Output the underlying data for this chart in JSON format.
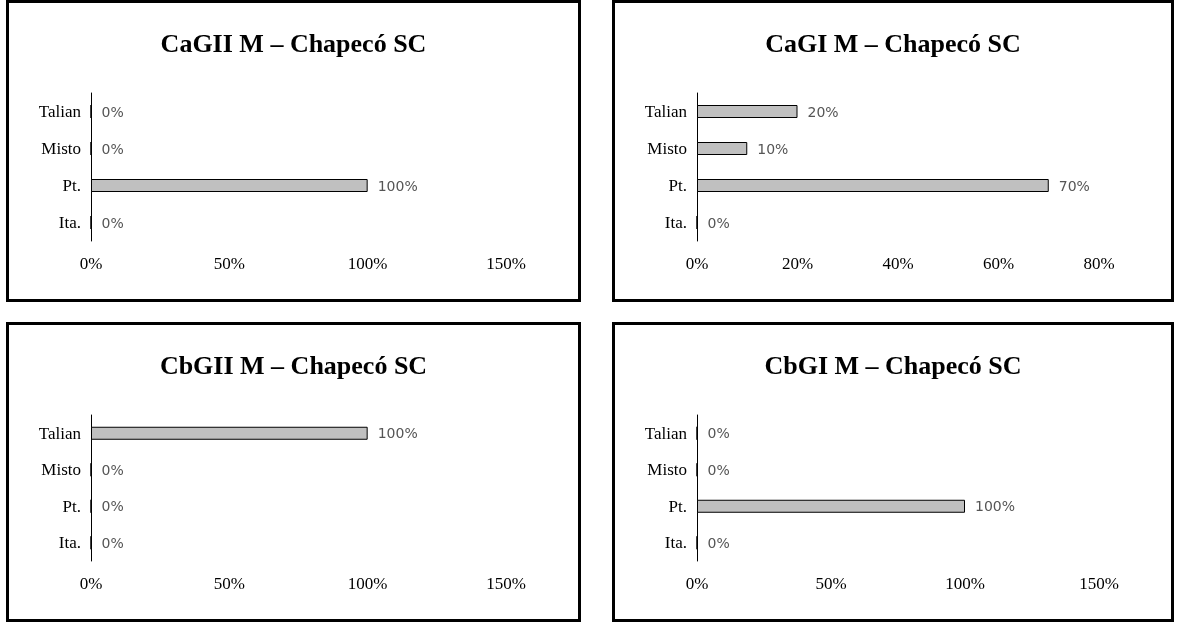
{
  "chart_data": [
    {
      "type": "bar",
      "orientation": "horizontal",
      "title": "CaGII M – Chapecó SC",
      "categories": [
        "Talian",
        "Misto",
        "Pt.",
        "Ita."
      ],
      "values": [
        0,
        0,
        100,
        0
      ],
      "value_labels": [
        "0%",
        "0%",
        "100%",
        "0%"
      ],
      "color": "#c0c0c0",
      "xlim": [
        0,
        150
      ],
      "xticks": [
        {
          "value": 0,
          "label": "0%"
        },
        {
          "value": 50,
          "label": "50%"
        },
        {
          "value": 100,
          "label": "100%"
        },
        {
          "value": 150,
          "label": "150%"
        }
      ]
    },
    {
      "type": "bar",
      "orientation": "horizontal",
      "title": "CaGI M – Chapecó SC",
      "categories": [
        "Talian",
        "Misto",
        "Pt.",
        "Ita."
      ],
      "values": [
        20,
        10,
        70,
        0
      ],
      "value_labels": [
        "20%",
        "10%",
        "70%",
        "0%"
      ],
      "color": "#c0c0c0",
      "xlim": [
        0,
        80
      ],
      "xticks": [
        {
          "value": 0,
          "label": "0%"
        },
        {
          "value": 20,
          "label": "20%"
        },
        {
          "value": 40,
          "label": "40%"
        },
        {
          "value": 60,
          "label": "60%"
        },
        {
          "value": 80,
          "label": "80%"
        }
      ]
    },
    {
      "type": "bar",
      "orientation": "horizontal",
      "title": "CbGII M – Chapecó SC",
      "categories": [
        "Talian",
        "Misto",
        "Pt.",
        "Ita."
      ],
      "values": [
        100,
        0,
        0,
        0
      ],
      "value_labels": [
        "100%",
        "0%",
        "0%",
        "0%"
      ],
      "color": "#c0c0c0",
      "xlim": [
        0,
        150
      ],
      "xticks": [
        {
          "value": 0,
          "label": "0%"
        },
        {
          "value": 50,
          "label": "50%"
        },
        {
          "value": 100,
          "label": "100%"
        },
        {
          "value": 150,
          "label": "150%"
        }
      ]
    },
    {
      "type": "bar",
      "orientation": "horizontal",
      "title": "CbGI M – Chapecó SC",
      "categories": [
        "Talian",
        "Misto",
        "Pt.",
        "Ita."
      ],
      "values": [
        0,
        0,
        100,
        0
      ],
      "value_labels": [
        "0%",
        "0%",
        "100%",
        "0%"
      ],
      "color": "#c0c0c0",
      "xlim": [
        0,
        150
      ],
      "xticks": [
        {
          "value": 0,
          "label": "0%"
        },
        {
          "value": 50,
          "label": "50%"
        },
        {
          "value": 100,
          "label": "100%"
        },
        {
          "value": 150,
          "label": "150%"
        }
      ]
    }
  ]
}
